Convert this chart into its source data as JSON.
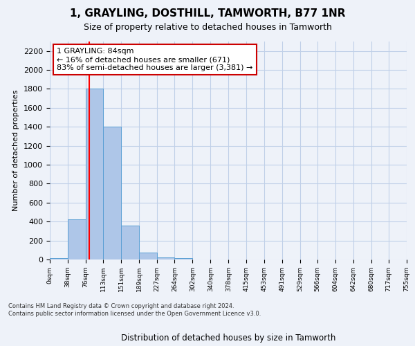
{
  "title": "1, GRAYLING, DOSTHILL, TAMWORTH, B77 1NR",
  "subtitle": "Size of property relative to detached houses in Tamworth",
  "xlabel": "Distribution of detached houses by size in Tamworth",
  "ylabel": "Number of detached properties",
  "bin_edges": [
    0,
    38,
    76,
    113,
    151,
    189,
    227,
    264,
    302,
    340,
    378,
    415,
    453,
    491,
    529,
    566,
    604,
    642,
    680,
    717,
    755
  ],
  "bar_values": [
    15,
    420,
    1800,
    1400,
    355,
    75,
    25,
    15,
    0,
    0,
    0,
    0,
    0,
    0,
    0,
    0,
    0,
    0,
    0,
    0
  ],
  "bar_color": "#aec6e8",
  "bar_edge_color": "#5a9fd4",
  "grid_color": "#c0d0e8",
  "property_size": 84,
  "red_line_x": 84,
  "annotation_text": "1 GRAYLING: 84sqm\n← 16% of detached houses are smaller (671)\n83% of semi-detached houses are larger (3,381) →",
  "annotation_box_color": "#ffffff",
  "annotation_box_edge_color": "#cc0000",
  "ylim": [
    0,
    2300
  ],
  "yticks": [
    0,
    200,
    400,
    600,
    800,
    1000,
    1200,
    1400,
    1600,
    1800,
    2000,
    2200
  ],
  "footer_line1": "Contains HM Land Registry data © Crown copyright and database right 2024.",
  "footer_line2": "Contains public sector information licensed under the Open Government Licence v3.0.",
  "background_color": "#eef2f9"
}
